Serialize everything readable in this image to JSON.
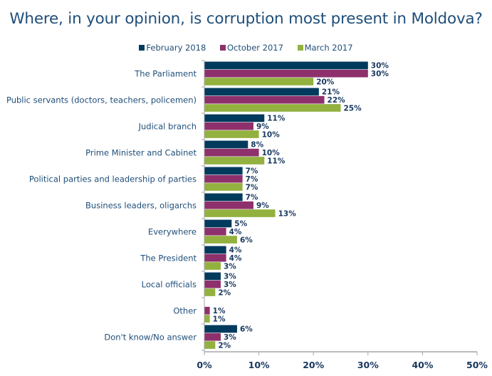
{
  "chart_data": {
    "type": "bar",
    "orientation": "horizontal",
    "title": "Where, in your opinion, is corruption most present in Moldova?",
    "xlabel": "",
    "ylabel": "",
    "xlim": [
      0,
      50
    ],
    "x_ticks": [
      "0%",
      "10%",
      "20%",
      "30%",
      "40%",
      "50%"
    ],
    "grid": false,
    "legend_position": "top",
    "value_suffix": "%",
    "categories": [
      "The Parliament",
      "Public servants (doctors, teachers, policemen)",
      "Judical branch",
      "Prime Minister and Cabinet",
      "Political parties and leadership of parties",
      "Business leaders, oligarchs",
      "Everywhere",
      "The President",
      "Local officials",
      "Other",
      "Don't know/No answer"
    ],
    "series": [
      {
        "name": "February 2018",
        "color": "#003a5d",
        "values": [
          30,
          21,
          11,
          8,
          7,
          7,
          5,
          4,
          3,
          null,
          6
        ]
      },
      {
        "name": "October 2017",
        "color": "#8e306c",
        "values": [
          30,
          22,
          9,
          10,
          7,
          9,
          4,
          4,
          3,
          1,
          3
        ]
      },
      {
        "name": "March 2017",
        "color": "#93b13f",
        "values": [
          20,
          25,
          10,
          11,
          7,
          13,
          6,
          3,
          2,
          1,
          2
        ]
      }
    ]
  }
}
